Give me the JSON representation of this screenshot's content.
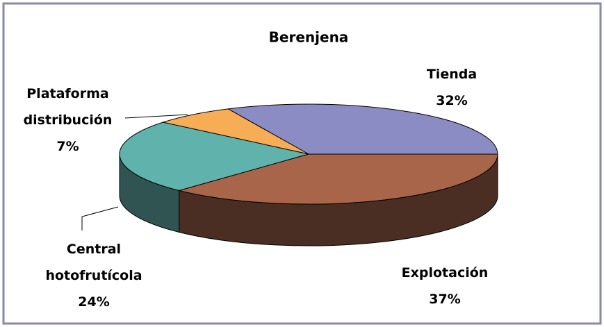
{
  "chart_data": {
    "type": "pie",
    "title": "Berenjena",
    "categories": [
      "Tienda",
      "Plataforma distribución",
      "Central hotofrutícola",
      "Explotación"
    ],
    "values": [
      32,
      7,
      24,
      37
    ],
    "value_labels": [
      "32%",
      "7%",
      "24%",
      "37%"
    ],
    "colors": [
      "#8c8cc4",
      "#f7ad55",
      "#5fb3ac",
      "#a8654a"
    ],
    "side_colors": [
      "#5a5a90",
      "#b07030",
      "#2f5452",
      "#4a2e24"
    ]
  }
}
